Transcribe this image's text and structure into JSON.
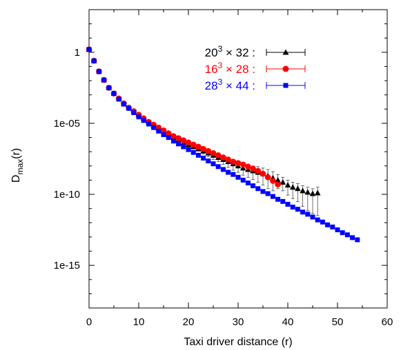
{
  "chart_data": {
    "type": "scatter",
    "xlabel": "Taxi driver distance (r)",
    "ylabel": "D",
    "ylabel_subscript": "max",
    "ylabel_suffix": "(r)",
    "xlim": [
      0,
      60
    ],
    "ylim_log10": [
      -18,
      3
    ],
    "log_y": true,
    "grid": false,
    "legend_position": "top-right",
    "x_ticks": [
      {
        "value": 0,
        "label": "0"
      },
      {
        "value": 10,
        "label": "10"
      },
      {
        "value": 20,
        "label": "20"
      },
      {
        "value": 30,
        "label": "30"
      },
      {
        "value": 40,
        "label": "40"
      },
      {
        "value": 50,
        "label": "50"
      },
      {
        "value": 60,
        "label": "60"
      }
    ],
    "y_ticks": [
      {
        "log": 0,
        "label": "1"
      },
      {
        "log": -5,
        "label": "1e-05"
      },
      {
        "log": -10,
        "label": "1e-10"
      },
      {
        "log": -15,
        "label": "1e-15"
      }
    ],
    "series": [
      {
        "name_base": "20",
        "name_sup": "3",
        "name_rest": " × 32 :",
        "color": "#000000",
        "marker": "triangle",
        "x": [
          0,
          1,
          2,
          3,
          4,
          5,
          6,
          7,
          8,
          9,
          10,
          11,
          12,
          13,
          14,
          15,
          16,
          17,
          18,
          19,
          20,
          21,
          22,
          23,
          24,
          25,
          26,
          27,
          28,
          29,
          30,
          31,
          32,
          33,
          34,
          35,
          36,
          37,
          38,
          39,
          40,
          41,
          42,
          43,
          44,
          45,
          46
        ],
        "log10_y": [
          0.2,
          -0.6,
          -1.35,
          -1.95,
          -2.5,
          -2.9,
          -3.25,
          -3.6,
          -3.9,
          -4.15,
          -4.4,
          -4.65,
          -4.9,
          -5.15,
          -5.35,
          -5.55,
          -5.75,
          -5.95,
          -6.15,
          -6.35,
          -6.5,
          -6.65,
          -6.8,
          -6.95,
          -7.1,
          -7.25,
          -7.4,
          -7.55,
          -7.7,
          -7.85,
          -8.0,
          -8.15,
          -8.25,
          -8.35,
          -8.45,
          -8.55,
          -8.7,
          -8.85,
          -9.0,
          -9.15,
          -9.35,
          -9.5,
          -9.6,
          -9.75,
          -9.85,
          -9.95,
          -9.9
        ],
        "err_down": [
          0,
          0,
          0,
          0,
          0,
          0,
          0,
          0,
          0,
          0,
          0,
          0,
          0,
          0,
          0,
          0,
          0,
          0,
          0,
          0,
          0,
          0,
          0,
          0.2,
          0.25,
          0.3,
          0.3,
          0.35,
          0.4,
          0.45,
          0.45,
          0.5,
          0.55,
          0.6,
          0.7,
          0.8,
          0.9,
          0.9,
          0.6,
          0.6,
          0.7,
          0.8,
          0.9,
          1.1,
          1.3,
          1.4,
          1.6
        ],
        "err_up": [
          0,
          0,
          0,
          0,
          0,
          0,
          0,
          0,
          0,
          0,
          0,
          0,
          0,
          0,
          0,
          0,
          0,
          0,
          0,
          0,
          0,
          0,
          0,
          0.1,
          0.15,
          0.2,
          0.2,
          0.25,
          0.25,
          0.3,
          0.3,
          0.3,
          0.3,
          0.35,
          0.4,
          0.4,
          0.45,
          0.45,
          0.4,
          0.35,
          0.35,
          0.35,
          0.35,
          0.35,
          0.35,
          0.35,
          0.4
        ]
      },
      {
        "name_base": "16",
        "name_sup": "3",
        "name_rest": " × 28 :",
        "color": "#ff0000",
        "marker": "circle",
        "x": [
          0,
          1,
          2,
          3,
          4,
          5,
          6,
          7,
          8,
          9,
          10,
          11,
          12,
          13,
          14,
          15,
          16,
          17,
          18,
          19,
          20,
          21,
          22,
          23,
          24,
          25,
          26,
          27,
          28,
          29,
          30,
          31,
          32,
          33,
          34,
          35,
          36,
          37,
          38
        ],
        "log10_y": [
          0.2,
          -0.6,
          -1.35,
          -1.95,
          -2.5,
          -2.9,
          -3.25,
          -3.6,
          -3.9,
          -4.15,
          -4.4,
          -4.65,
          -4.9,
          -5.1,
          -5.3,
          -5.5,
          -5.7,
          -5.9,
          -6.05,
          -6.2,
          -6.35,
          -6.5,
          -6.65,
          -6.8,
          -6.95,
          -7.1,
          -7.25,
          -7.4,
          -7.55,
          -7.7,
          -7.8,
          -7.9,
          -8.05,
          -8.2,
          -8.35,
          -8.55,
          -8.8,
          -9.05,
          -9.3
        ],
        "err_down": [],
        "err_up": []
      },
      {
        "name_base": "28",
        "name_sup": "3",
        "name_rest": " × 44 :",
        "color": "#0000ff",
        "marker": "square",
        "x": [
          0,
          1,
          2,
          3,
          4,
          5,
          6,
          7,
          8,
          9,
          10,
          11,
          12,
          13,
          14,
          15,
          16,
          17,
          18,
          19,
          20,
          21,
          22,
          23,
          24,
          25,
          26,
          27,
          28,
          29,
          30,
          31,
          32,
          33,
          34,
          35,
          36,
          37,
          38,
          39,
          40,
          41,
          42,
          43,
          44,
          45,
          46,
          47,
          48,
          49,
          50,
          51,
          52,
          53,
          54
        ],
        "log10_y": [
          0.2,
          -0.6,
          -1.35,
          -1.95,
          -2.5,
          -2.9,
          -3.3,
          -3.65,
          -3.95,
          -4.25,
          -4.55,
          -4.8,
          -5.05,
          -5.3,
          -5.55,
          -5.8,
          -6.0,
          -6.25,
          -6.45,
          -6.65,
          -6.85,
          -7.05,
          -7.25,
          -7.45,
          -7.65,
          -7.85,
          -8.05,
          -8.25,
          -8.45,
          -8.6,
          -8.8,
          -9.0,
          -9.2,
          -9.4,
          -9.6,
          -9.8,
          -9.95,
          -10.15,
          -10.35,
          -10.5,
          -10.7,
          -10.9,
          -11.05,
          -11.25,
          -11.4,
          -11.6,
          -11.8,
          -11.95,
          -12.15,
          -12.3,
          -12.5,
          -12.7,
          -12.85,
          -13.05,
          -13.2
        ],
        "err_down": [],
        "err_up": []
      }
    ]
  }
}
